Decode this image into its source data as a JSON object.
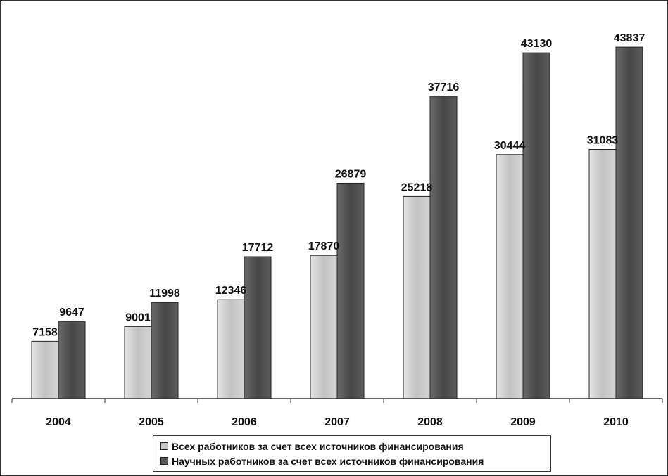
{
  "chart_data": {
    "type": "bar",
    "categories": [
      "2004",
      "2005",
      "2006",
      "2007",
      "2008",
      "2009",
      "2010"
    ],
    "series": [
      {
        "name": "Всех работников за счет всех источников финансирования",
        "values": [
          7158,
          9001,
          12346,
          17870,
          25218,
          30444,
          31083
        ],
        "color": "#c6c6c6"
      },
      {
        "name": "Научных работников за счет всех источников финансирования",
        "values": [
          9647,
          11998,
          17712,
          26879,
          37716,
          43130,
          43837
        ],
        "color": "#555555"
      }
    ],
    "ylim": [
      0,
      47000
    ],
    "legend_position": "bottom",
    "grid": false
  }
}
